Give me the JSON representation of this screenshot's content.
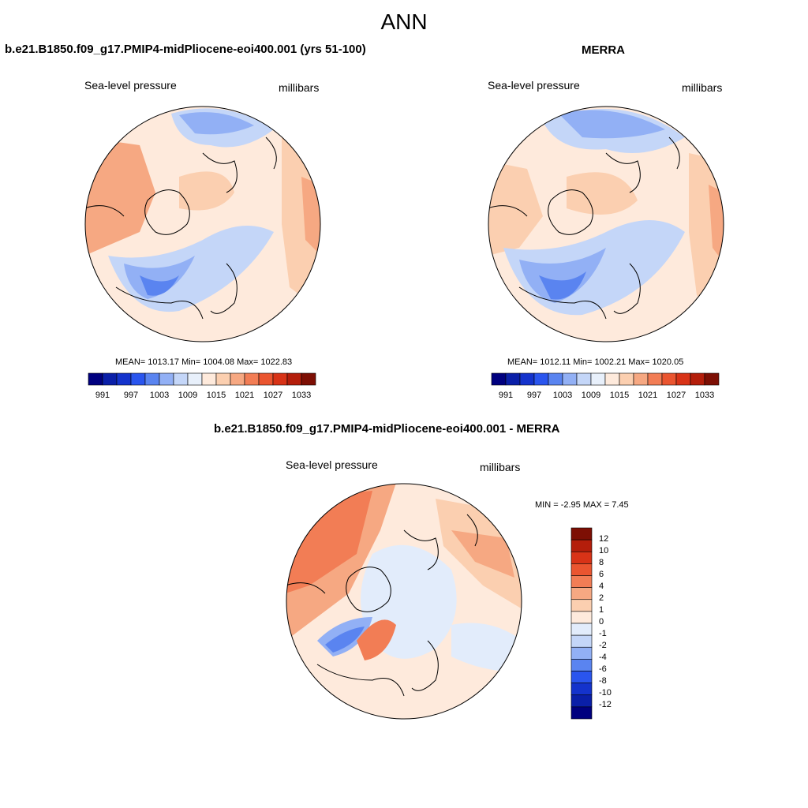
{
  "title": "ANN",
  "colors": {
    "seq": [
      "#00007f",
      "#0a1fa8",
      "#1433cc",
      "#2a55ee",
      "#5a84f0",
      "#92b0f5",
      "#c4d6f8",
      "#e8f0fb",
      "#feeadc",
      "#fbcfb0",
      "#f6a882",
      "#f27d55",
      "#ea5530",
      "#d83317",
      "#b41e0b",
      "#7d0f04"
    ],
    "diff": [
      "#00007f",
      "#0a1fa8",
      "#1433cc",
      "#2a55ee",
      "#5a84f0",
      "#92b0f5",
      "#c4d6f8",
      "#e2ecfb",
      "#feeadc",
      "#fbcfb0",
      "#f6a882",
      "#f27d55",
      "#ea5530",
      "#d83317",
      "#b41e0b",
      "#7d0f04"
    ],
    "land": "#000000"
  },
  "panels": {
    "model": {
      "title": "b.e21.B1850.f09_g17.PMIP4-midPliocene-eoi400.001 (yrs 51-100)",
      "left_label": "Sea-level pressure",
      "right_label": "millibars",
      "stats": "MEAN= 1013.17   Min= 1004.08   Max= 1022.83"
    },
    "obs": {
      "title": "MERRA",
      "left_label": "Sea-level pressure",
      "right_label": "millibars",
      "stats": "MEAN= 1012.11   Min= 1002.21   Max= 1020.05"
    },
    "diff": {
      "title": "b.e21.B1850.f09_g17.PMIP4-midPliocene-eoi400.001 - MERRA",
      "left_label": "Sea-level pressure",
      "right_label": "millibars",
      "stats": "MIN =  -2.95 MAX =   7.45"
    }
  },
  "colorbar_levels": [
    "991",
    "997",
    "1003",
    "1009",
    "1015",
    "1021",
    "1027",
    "1033"
  ],
  "diff_colorbar_levels": [
    "12",
    "10",
    "8",
    "6",
    "4",
    "2",
    "1",
    "0",
    "-1",
    "-2",
    "-4",
    "-6",
    "-8",
    "-10",
    "-12"
  ]
}
